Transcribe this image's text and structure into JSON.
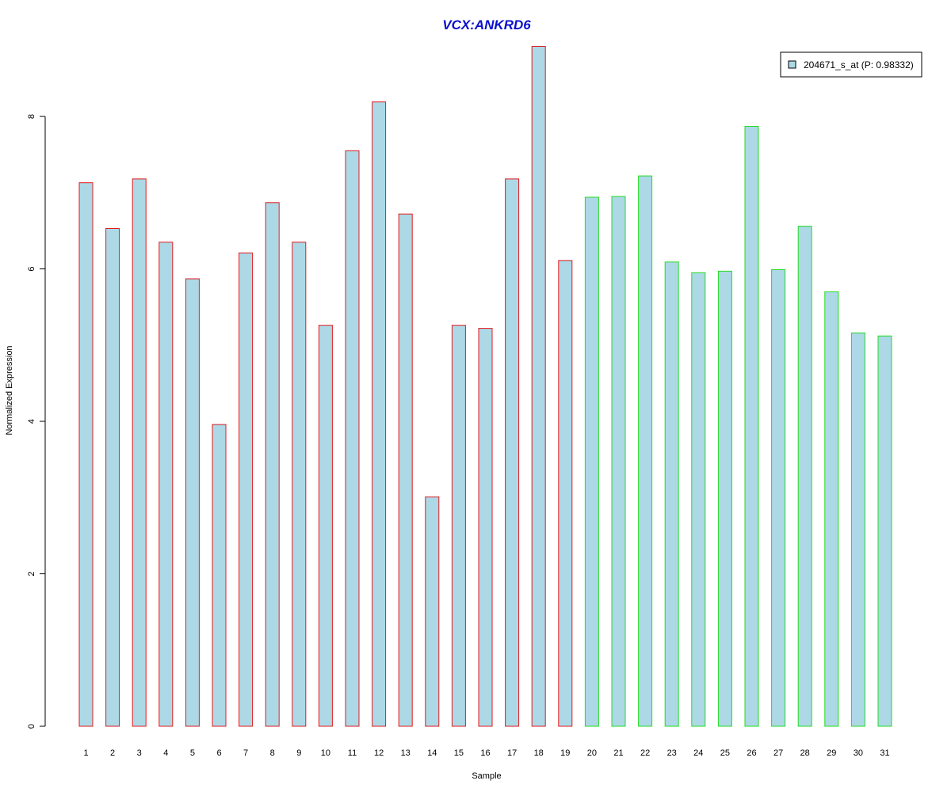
{
  "chart_data": {
    "type": "bar",
    "title": "VCX:ANKRD6",
    "xlabel": "Sample",
    "ylabel": "Normalized Expression",
    "ylim": [
      0,
      9
    ],
    "yticks": [
      0,
      2,
      4,
      6,
      8
    ],
    "grid": false,
    "legend_position": "top-right",
    "categories": [
      "1",
      "2",
      "3",
      "4",
      "5",
      "6",
      "7",
      "8",
      "9",
      "10",
      "11",
      "12",
      "13",
      "14",
      "15",
      "16",
      "17",
      "18",
      "19",
      "20",
      "21",
      "22",
      "23",
      "24",
      "25",
      "26",
      "27",
      "28",
      "29",
      "30",
      "31"
    ],
    "series": [
      {
        "name": "204671_s_at (P: 0.98332)",
        "values": [
          7.13,
          6.53,
          7.18,
          6.35,
          5.87,
          3.96,
          6.21,
          6.87,
          6.35,
          5.26,
          7.55,
          8.19,
          6.72,
          3.01,
          5.26,
          5.22,
          7.18,
          8.92,
          6.11,
          6.94,
          6.95,
          7.22,
          6.09,
          5.95,
          5.97,
          7.87,
          5.99,
          6.56,
          5.7,
          5.16,
          5.12
        ]
      }
    ],
    "groups": [
      {
        "samples": "1-19",
        "outline_color": "#e31a1c"
      },
      {
        "samples": "20-31",
        "outline_color": "#22dd22"
      }
    ],
    "colors": {
      "bar_fill": "#add8e6",
      "title": "#0a10cc",
      "group1_outline": "#e31a1c",
      "group2_outline": "#22dd22"
    }
  }
}
